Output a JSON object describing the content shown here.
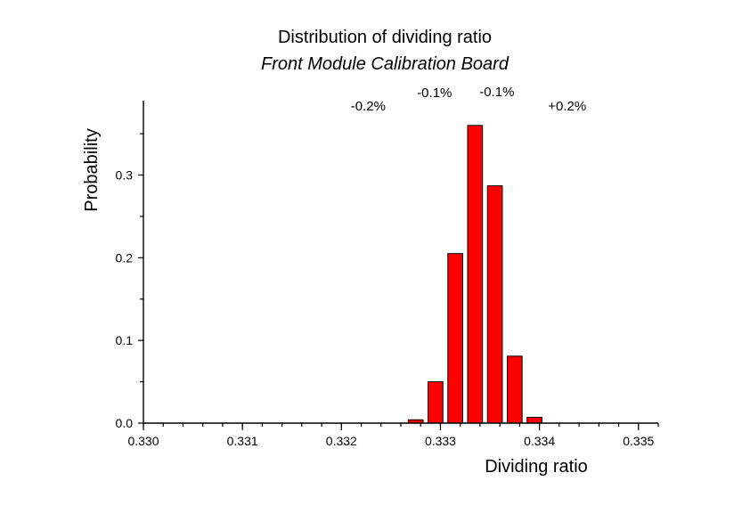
{
  "chart_data": {
    "type": "bar",
    "title": "Distribution of dividing ratio",
    "subtitle": "Front Module Calibration Board",
    "xlabel": "Dividing ratio",
    "ylabel": "Probability",
    "xlim": [
      0.33,
      0.3352
    ],
    "ylim": [
      0.0,
      0.39
    ],
    "x_ticks": [
      "0.330",
      "0.331",
      "0.332",
      "0.333",
      "0.334",
      "0.335"
    ],
    "x_tick_values": [
      0.33,
      0.331,
      0.332,
      0.333,
      0.334,
      0.335
    ],
    "y_ticks": [
      "0.0",
      "0.1",
      "0.2",
      "0.3"
    ],
    "y_tick_values": [
      0.0,
      0.1,
      0.2,
      0.3
    ],
    "bar_width": 0.00015,
    "bar_color": "#ff0000",
    "bars": [
      {
        "x": 0.33275,
        "value": 0.004
      },
      {
        "x": 0.33295,
        "value": 0.05
      },
      {
        "x": 0.33315,
        "value": 0.205
      },
      {
        "x": 0.33335,
        "value": 0.36
      },
      {
        "x": 0.33355,
        "value": 0.287
      },
      {
        "x": 0.33375,
        "value": 0.081
      },
      {
        "x": 0.33395,
        "value": 0.007
      }
    ],
    "annotations": [
      {
        "text": "-0.2%",
        "x": 0.33227
      },
      {
        "text": "-0.1%",
        "x": 0.33294
      },
      {
        "text": "-0.1%",
        "x": 0.33357
      },
      {
        "text": "+0.2%",
        "x": 0.33428
      }
    ]
  }
}
